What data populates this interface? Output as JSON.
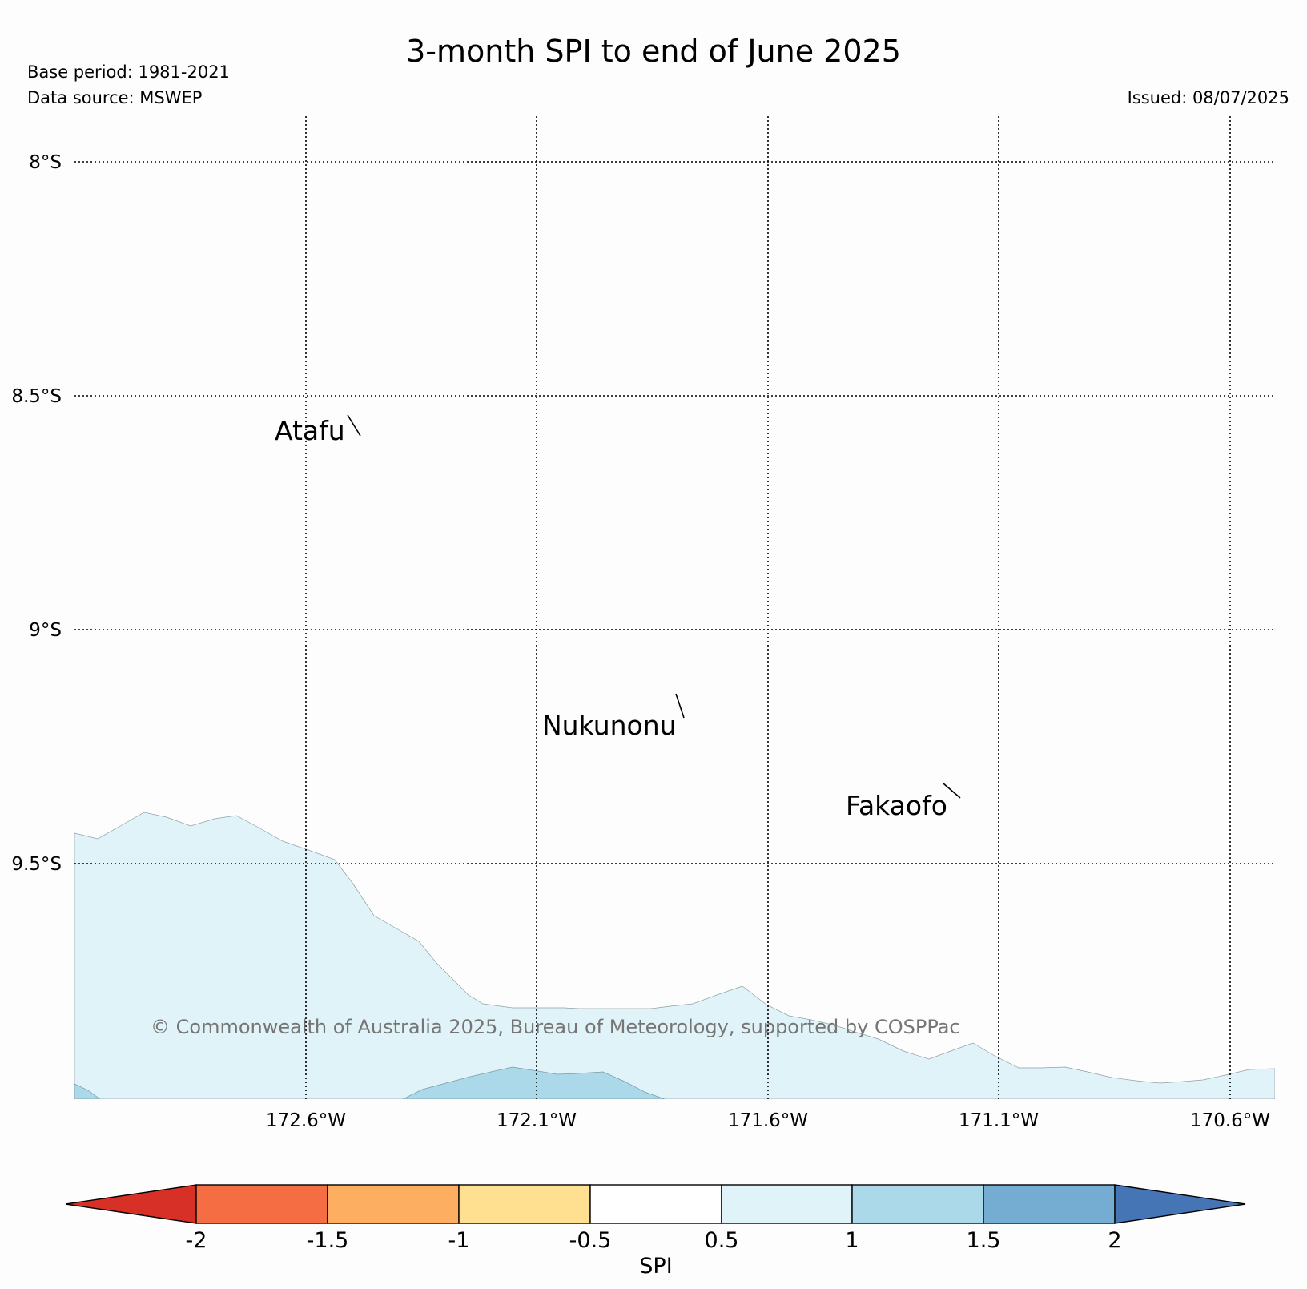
{
  "title": "3-month SPI to end of June 2025",
  "base_period": "Base period: 1981-2021",
  "data_source": "Data source: MSWEP",
  "issued": "Issued: 08/07/2025",
  "map": {
    "latitude_labels": [
      "8°S",
      "8.5°S",
      "9°S",
      "9.5°S"
    ],
    "longitude_labels": [
      "172.6°W",
      "172.1°W",
      "171.6°W",
      "171.1°W",
      "170.6°W"
    ],
    "places": [
      "Atafu",
      "Nukunonu",
      "Fakaofo"
    ],
    "copyright": "© Commonwealth of Australia 2025, Bureau of Meteorology, supported by COSPPac",
    "gridlines": "dotted",
    "shaded_categories": [
      "0.5 to 1",
      "1 to 1.5"
    ]
  },
  "colorbar": {
    "label": "SPI",
    "ticks": [
      "-2",
      "-1.5",
      "-1",
      "-0.5",
      "0.5",
      "1",
      "1.5",
      "2"
    ],
    "colors": {
      "below_-2": "#d73027",
      "-2_to_-1.5": "#f46d43",
      "-1.5_to_-1": "#fdae61",
      "-1_to_-0.5": "#fee090",
      "-0.5_to_0.5": "#ffffff",
      "0.5_to_1": "#e0f3f8",
      "1_to_1.5": "#abd9e9",
      "1.5_to_2": "#74add1",
      "above_2": "#4575b4"
    }
  }
}
